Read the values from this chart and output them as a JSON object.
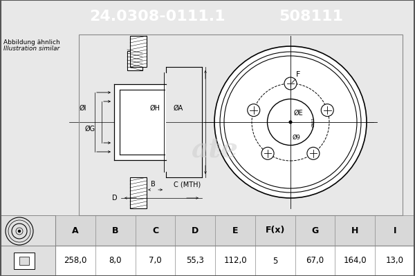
{
  "title_part": "24.0308-0111.1",
  "title_code": "508111",
  "header_bg": "#1a5fa8",
  "header_text_color": "#ffffff",
  "bg_color": "#e8e8e8",
  "diagram_bg": "#f0f0f0",
  "note_line1": "Abbildung ähnlich",
  "note_line2": "Illustration similar",
  "table_headers": [
    "A",
    "B",
    "C",
    "D",
    "E",
    "F(x)",
    "G",
    "H",
    "I"
  ],
  "table_values": [
    "258,0",
    "8,0",
    "7,0",
    "55,3",
    "112,0",
    "5",
    "67,0",
    "164,0",
    "13,0"
  ],
  "table_bg": "#ffffff",
  "table_header_bg": "#d0d0d0"
}
